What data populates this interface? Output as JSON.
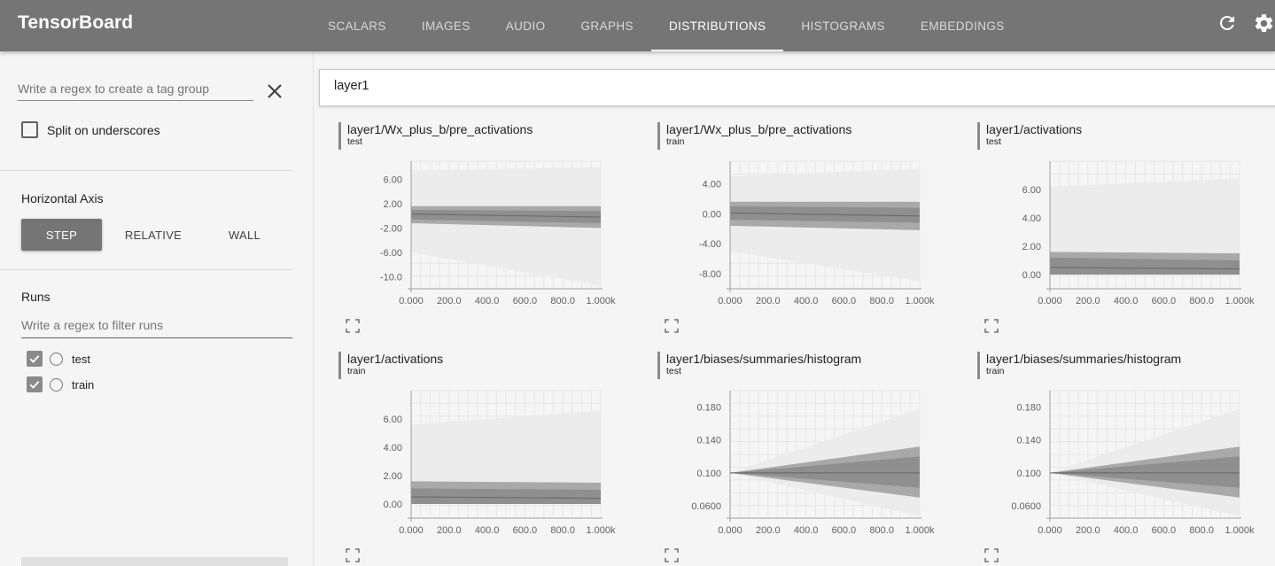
{
  "app": {
    "title": "TensorBoard"
  },
  "tabs": [
    {
      "label": "SCALARS",
      "active": false
    },
    {
      "label": "IMAGES",
      "active": false
    },
    {
      "label": "AUDIO",
      "active": false
    },
    {
      "label": "GRAPHS",
      "active": false
    },
    {
      "label": "DISTRIBUTIONS",
      "active": true
    },
    {
      "label": "HISTOGRAMS",
      "active": false
    },
    {
      "label": "EMBEDDINGS",
      "active": false
    }
  ],
  "toolbar": {
    "refresh_icon": "refresh-icon",
    "settings_icon": "gear-icon"
  },
  "sidebar": {
    "tag_group_placeholder": "Write a regex to create a tag group",
    "tag_group_value": "",
    "split_label": "Split on underscores",
    "split_checked": false,
    "horizontal_axis_title": "Horizontal Axis",
    "axis_buttons": [
      {
        "label": "STEP",
        "active": true
      },
      {
        "label": "RELATIVE",
        "active": false
      },
      {
        "label": "WALL",
        "active": false
      }
    ],
    "runs_title": "Runs",
    "runs_filter_placeholder": "Write a regex to filter runs",
    "runs": [
      {
        "label": "test",
        "checked": true
      },
      {
        "label": "train",
        "checked": true
      }
    ]
  },
  "main": {
    "filter_value": "layer1"
  },
  "colors": {
    "topbar": "#757575",
    "band_dark": "#8a8a8a",
    "band_light": "#ececec",
    "accent": "#ffffff"
  },
  "chart_data": [
    {
      "type": "area",
      "title": "layer1/Wx_plus_b/pre_activations",
      "run": "test",
      "x_ticks": [
        "0.000",
        "200.0",
        "400.0",
        "600.0",
        "800.0",
        "1.000k"
      ],
      "y_ticks": [
        "6.00",
        "2.00",
        "-2.00",
        "-6.00",
        "-10.0"
      ],
      "x": [
        0,
        1000
      ],
      "xlim": [
        0,
        1000
      ],
      "ylim": [
        -12,
        9
      ],
      "bands": {
        "outer_lo": [
          -6,
          -11.5
        ],
        "outer_hi": [
          7.5,
          8.0
        ],
        "mid_lo": [
          -1.2,
          -2.0
        ],
        "mid_hi": [
          1.6,
          1.6
        ],
        "inner_lo": [
          -0.6,
          -1.2
        ],
        "inner_hi": [
          1.0,
          0.8
        ],
        "median": [
          0.3,
          -0.2
        ]
      }
    },
    {
      "type": "area",
      "title": "layer1/Wx_plus_b/pre_activations",
      "run": "train",
      "x_ticks": [
        "0.000",
        "200.0",
        "400.0",
        "600.0",
        "800.0",
        "1.000k"
      ],
      "y_ticks": [
        "4.00",
        "0.00",
        "-4.00",
        "-8.00"
      ],
      "x": [
        0,
        1000
      ],
      "xlim": [
        0,
        1000
      ],
      "ylim": [
        -10,
        7
      ],
      "bands": {
        "outer_lo": [
          -5,
          -9.0
        ],
        "outer_hi": [
          5.0,
          6.0
        ],
        "mid_lo": [
          -1.6,
          -2.2
        ],
        "mid_hi": [
          1.6,
          1.6
        ],
        "inner_lo": [
          -0.8,
          -1.2
        ],
        "inner_hi": [
          1.0,
          0.8
        ],
        "median": [
          0.1,
          -0.3
        ]
      }
    },
    {
      "type": "area",
      "title": "layer1/activations",
      "run": "test",
      "x_ticks": [
        "0.000",
        "200.0",
        "400.0",
        "600.0",
        "800.0",
        "1.000k"
      ],
      "y_ticks": [
        "6.00",
        "4.00",
        "2.00",
        "0.00"
      ],
      "x": [
        0,
        1000
      ],
      "xlim": [
        0,
        1000
      ],
      "ylim": [
        -1,
        8
      ],
      "bands": {
        "outer_lo": [
          0,
          0
        ],
        "outer_hi": [
          6.2,
          6.8
        ],
        "mid_lo": [
          0,
          0
        ],
        "mid_hi": [
          1.6,
          1.5
        ],
        "inner_lo": [
          0,
          0
        ],
        "inner_hi": [
          1.2,
          1.0
        ],
        "median": [
          0.5,
          0.4
        ]
      }
    },
    {
      "type": "area",
      "title": "layer1/activations",
      "run": "train",
      "x_ticks": [
        "0.000",
        "200.0",
        "400.0",
        "600.0",
        "800.0",
        "1.000k"
      ],
      "y_ticks": [
        "6.00",
        "4.00",
        "2.00",
        "0.00"
      ],
      "x": [
        0,
        1000
      ],
      "xlim": [
        0,
        1000
      ],
      "ylim": [
        -1,
        8
      ],
      "bands": {
        "outer_lo": [
          0,
          0
        ],
        "outer_hi": [
          5.6,
          6.6
        ],
        "mid_lo": [
          0,
          0
        ],
        "mid_hi": [
          1.6,
          1.5
        ],
        "inner_lo": [
          0,
          0
        ],
        "inner_hi": [
          1.1,
          1.0
        ],
        "median": [
          0.5,
          0.4
        ]
      }
    },
    {
      "type": "area",
      "title": "layer1/biases/summaries/histogram",
      "run": "test",
      "x_ticks": [
        "0.000",
        "200.0",
        "400.0",
        "600.0",
        "800.0",
        "1.000k"
      ],
      "y_ticks": [
        "0.180",
        "0.140",
        "0.100",
        "0.0600"
      ],
      "x": [
        0,
        1000
      ],
      "xlim": [
        0,
        1000
      ],
      "ylim": [
        0.045,
        0.2
      ],
      "bands": {
        "outer_lo": [
          0.1,
          0.047
        ],
        "outer_hi": [
          0.1,
          0.178
        ],
        "mid_lo": [
          0.1,
          0.07
        ],
        "mid_hi": [
          0.1,
          0.132
        ],
        "inner_lo": [
          0.1,
          0.082
        ],
        "inner_hi": [
          0.1,
          0.12
        ],
        "median": [
          0.1,
          0.1
        ]
      }
    },
    {
      "type": "area",
      "title": "layer1/biases/summaries/histogram",
      "run": "train",
      "x_ticks": [
        "0.000",
        "200.0",
        "400.0",
        "600.0",
        "800.0",
        "1.000k"
      ],
      "y_ticks": [
        "0.180",
        "0.140",
        "0.100",
        "0.0600"
      ],
      "x": [
        0,
        1000
      ],
      "xlim": [
        0,
        1000
      ],
      "ylim": [
        0.045,
        0.2
      ],
      "bands": {
        "outer_lo": [
          0.1,
          0.047
        ],
        "outer_hi": [
          0.1,
          0.178
        ],
        "mid_lo": [
          0.1,
          0.07
        ],
        "mid_hi": [
          0.1,
          0.132
        ],
        "inner_lo": [
          0.1,
          0.082
        ],
        "inner_hi": [
          0.1,
          0.12
        ],
        "median": [
          0.1,
          0.1
        ]
      }
    }
  ]
}
